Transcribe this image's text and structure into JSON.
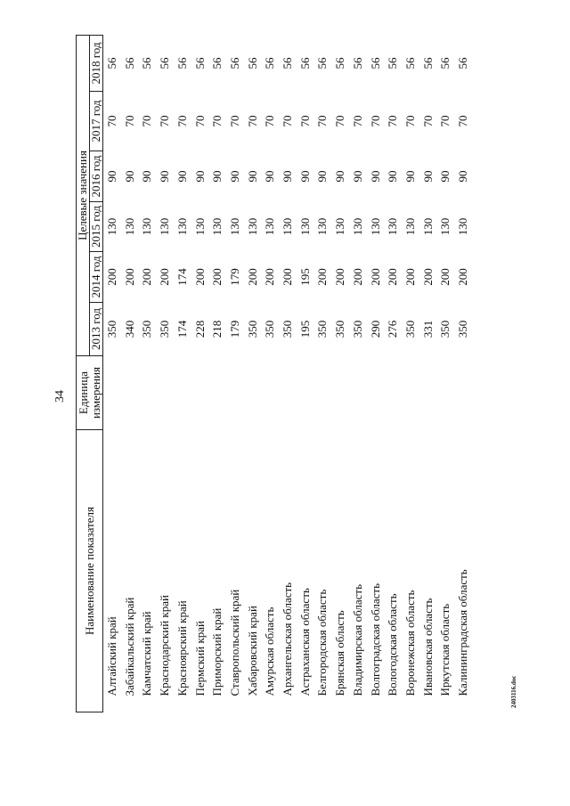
{
  "page_number": "34",
  "header": {
    "name": "Наименование показателя",
    "unit": "Единица измерения",
    "target": "Целевые значения",
    "years": [
      "2013 год",
      "2014 год",
      "2015 год",
      "2016 год",
      "2017 год",
      "2018 год"
    ]
  },
  "rows": [
    {
      "name": "Алтайский край",
      "values": [
        350,
        200,
        130,
        90,
        70,
        56
      ]
    },
    {
      "name": "Забайкальский край",
      "values": [
        340,
        200,
        130,
        90,
        70,
        56
      ]
    },
    {
      "name": "Камчатский край",
      "values": [
        350,
        200,
        130,
        90,
        70,
        56
      ]
    },
    {
      "name": "Краснодарский край",
      "values": [
        350,
        200,
        130,
        90,
        70,
        56
      ]
    },
    {
      "name": "Красноярский край",
      "values": [
        174,
        174,
        130,
        90,
        70,
        56
      ]
    },
    {
      "name": "Пермский край",
      "values": [
        228,
        200,
        130,
        90,
        70,
        56
      ]
    },
    {
      "name": "Приморский край",
      "values": [
        218,
        200,
        130,
        90,
        70,
        56
      ]
    },
    {
      "name": "Ставропольский край",
      "values": [
        179,
        179,
        130,
        90,
        70,
        56
      ]
    },
    {
      "name": "Хабаровский край",
      "values": [
        350,
        200,
        130,
        90,
        70,
        56
      ]
    },
    {
      "name": "Амурская область",
      "values": [
        350,
        200,
        130,
        90,
        70,
        56
      ]
    },
    {
      "name": "Архангельская область",
      "values": [
        350,
        200,
        130,
        90,
        70,
        56
      ]
    },
    {
      "name": "Астраханская область",
      "values": [
        195,
        195,
        130,
        90,
        70,
        56
      ]
    },
    {
      "name": "Белгородская область",
      "values": [
        350,
        200,
        130,
        90,
        70,
        56
      ]
    },
    {
      "name": "Брянская область",
      "values": [
        350,
        200,
        130,
        90,
        70,
        56
      ]
    },
    {
      "name": "Владимирская область",
      "values": [
        350,
        200,
        130,
        90,
        70,
        56
      ]
    },
    {
      "name": "Волгоградская область",
      "values": [
        290,
        200,
        130,
        90,
        70,
        56
      ]
    },
    {
      "name": "Вологодская область",
      "values": [
        276,
        200,
        130,
        90,
        70,
        56
      ]
    },
    {
      "name": "Воронежская область",
      "values": [
        350,
        200,
        130,
        90,
        70,
        56
      ]
    },
    {
      "name": "Ивановская область",
      "values": [
        331,
        200,
        130,
        90,
        70,
        56
      ]
    },
    {
      "name": "Иркутская область",
      "values": [
        350,
        200,
        130,
        90,
        70,
        56
      ]
    },
    {
      "name": "Калининградская область",
      "values": [
        350,
        200,
        130,
        90,
        70,
        56
      ]
    }
  ],
  "footer": "2403116.doc"
}
